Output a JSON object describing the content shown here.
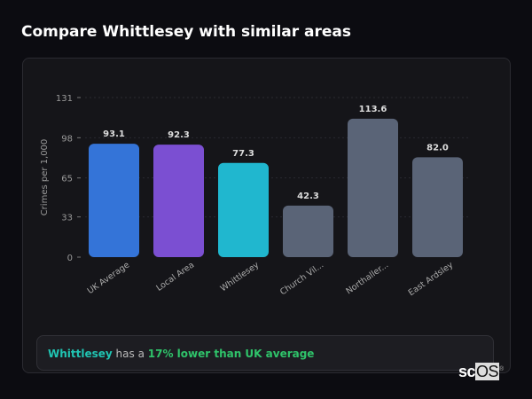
{
  "title": "Compare Whittlesey with similar areas",
  "chart_data": {
    "type": "bar",
    "title": "",
    "xlabel": "",
    "ylabel": "Crimes per 1,000",
    "ylim": [
      0,
      131
    ],
    "yticks": [
      0,
      33,
      65,
      98,
      131
    ],
    "grid": true,
    "categories": [
      "UK Average",
      "Local Area",
      "Whittlesey",
      "Church Vil...",
      "Northaller...",
      "East Ardsley"
    ],
    "values": [
      93.1,
      92.3,
      77.3,
      42.3,
      113.6,
      82.0
    ],
    "value_labels": [
      "93.1",
      "92.3",
      "77.3",
      "42.3",
      "113.6",
      "82.0"
    ],
    "colors": [
      "#3474d8",
      "#7b4fd2",
      "#20b7cf",
      "#5a6477",
      "#5a6477",
      "#5a6477"
    ]
  },
  "note": {
    "area": "Whittlesey",
    "middle": " has a ",
    "comparison": "17% lower than UK average"
  },
  "logo": {
    "text_a": "sc",
    "text_b": "OS",
    "mark": "®"
  }
}
